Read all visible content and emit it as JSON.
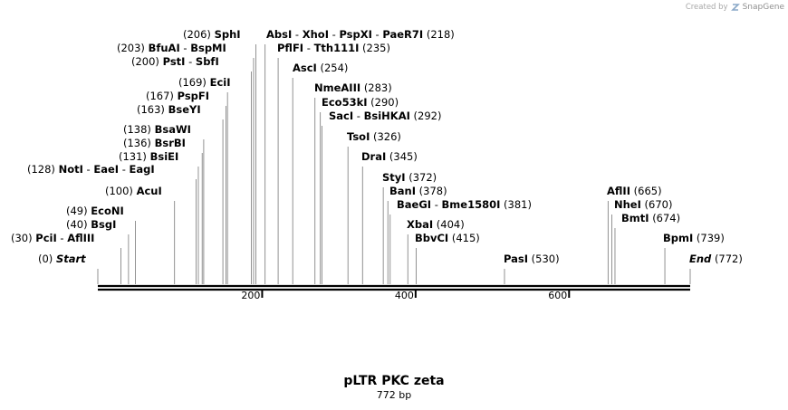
{
  "watermark": {
    "created_by": "Created by",
    "brand": "SnapGene"
  },
  "plasmid": {
    "name": "pLTR PKC zeta",
    "length_label": "772 bp",
    "length": 772
  },
  "ruler": {
    "ticks": [
      {
        "label": "200",
        "pos": 200
      },
      {
        "label": "400",
        "pos": 400
      },
      {
        "label": "600",
        "pos": 600
      }
    ]
  },
  "features": [
    {
      "label_pos": "(0)",
      "names": [
        "Start"
      ],
      "site": 0,
      "end_marker": true
    },
    {
      "label_pos": "(30)",
      "names": [
        "PciI",
        "AflIII"
      ],
      "site": 30
    },
    {
      "label_pos": "(40)",
      "names": [
        "BsgI"
      ],
      "site": 40
    },
    {
      "label_pos": "(49)",
      "names": [
        "EcoNI"
      ],
      "site": 49
    },
    {
      "label_pos": "(100)",
      "names": [
        "AcuI"
      ],
      "site": 100
    },
    {
      "label_pos": "(128)",
      "names": [
        "NotI",
        "EaeI",
        "EagI"
      ],
      "site": 128
    },
    {
      "label_pos": "(131)",
      "names": [
        "BsiEI"
      ],
      "site": 131
    },
    {
      "label_pos": "(136)",
      "names": [
        "BsrBI"
      ],
      "site": 136
    },
    {
      "label_pos": "(138)",
      "names": [
        "BsaWI"
      ],
      "site": 138
    },
    {
      "label_pos": "(163)",
      "names": [
        "BseYI"
      ],
      "site": 163
    },
    {
      "label_pos": "(167)",
      "names": [
        "PspFI"
      ],
      "site": 167
    },
    {
      "label_pos": "(169)",
      "names": [
        "EciI"
      ],
      "site": 169
    },
    {
      "label_pos": "(200)",
      "names": [
        "PstI",
        "SbfI"
      ],
      "site": 200
    },
    {
      "label_pos": "(203)",
      "names": [
        "BfuAI",
        "BspMI"
      ],
      "site": 203
    },
    {
      "label_pos": "(206)",
      "names": [
        "SphI"
      ],
      "site": 206
    },
    {
      "label_pos": "(218)",
      "names": [
        "AbsI",
        "XhoI",
        "PspXI",
        "PaeR7I"
      ],
      "site": 218
    },
    {
      "label_pos": "(235)",
      "names": [
        "PflFI",
        "Tth111I"
      ],
      "site": 235
    },
    {
      "label_pos": "(254)",
      "names": [
        "AscI"
      ],
      "site": 254
    },
    {
      "label_pos": "(283)",
      "names": [
        "NmeAIII"
      ],
      "site": 283
    },
    {
      "label_pos": "(290)",
      "names": [
        "Eco53kI"
      ],
      "site": 290
    },
    {
      "label_pos": "(292)",
      "names": [
        "SacI",
        "BsiHKAI"
      ],
      "site": 292
    },
    {
      "label_pos": "(326)",
      "names": [
        "TsoI"
      ],
      "site": 326
    },
    {
      "label_pos": "(345)",
      "names": [
        "DraI"
      ],
      "site": 345
    },
    {
      "label_pos": "(372)",
      "names": [
        "StyI"
      ],
      "site": 372
    },
    {
      "label_pos": "(378)",
      "names": [
        "BanI"
      ],
      "site": 378
    },
    {
      "label_pos": "(381)",
      "names": [
        "BaeGI",
        "Bme1580I"
      ],
      "site": 381
    },
    {
      "label_pos": "(404)",
      "names": [
        "XbaI"
      ],
      "site": 404
    },
    {
      "label_pos": "(415)",
      "names": [
        "BbvCI"
      ],
      "site": 415
    },
    {
      "label_pos": "(530)",
      "names": [
        "PasI"
      ],
      "site": 530
    },
    {
      "label_pos": "(665)",
      "names": [
        "AflII"
      ],
      "site": 665
    },
    {
      "label_pos": "(670)",
      "names": [
        "NheI"
      ],
      "site": 670
    },
    {
      "label_pos": "(674)",
      "names": [
        "BmtI"
      ],
      "site": 674
    },
    {
      "label_pos": "(739)",
      "names": [
        "BpmI"
      ],
      "site": 739
    },
    {
      "label_pos": "(772)",
      "names": [
        "End"
      ],
      "site": 772,
      "end_marker": true
    }
  ]
}
